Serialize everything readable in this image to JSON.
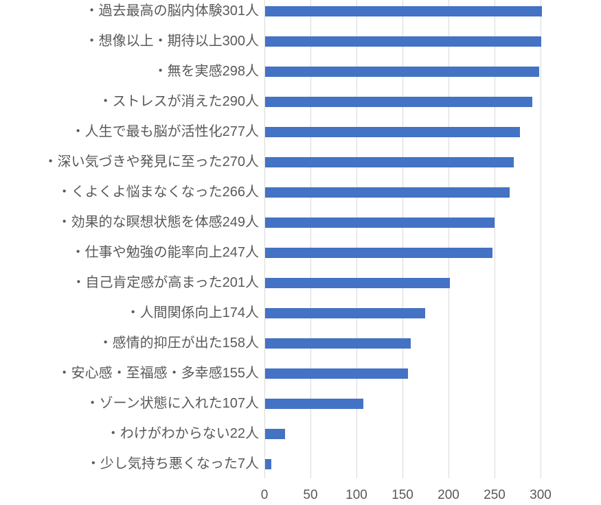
{
  "chart_data": {
    "type": "bar",
    "orientation": "horizontal",
    "title": "",
    "xlabel": "",
    "ylabel": "",
    "categories": [
      "・過去最高の脳内体験301人",
      "・想像以上・期待以上300人",
      "・無を実感298人",
      "・ストレスが消えた290人",
      "・人生で最も脳が活性化277人",
      "・深い気づきや発見に至った270人",
      "・くよくよ悩まなくなった266人",
      "・効果的な瞑想状態を体感249人",
      "・仕事や勉強の能率向上247人",
      "・自己肯定感が高まった201人",
      "・人間関係向上174人",
      "・感情的抑圧が出た158人",
      "・安心感・至福感・多幸感155人",
      "・ゾーン状態に入れた107人",
      "・わけがわからない22人",
      "・少し気持ち悪くなった7人"
    ],
    "values": [
      301,
      300,
      298,
      290,
      277,
      270,
      266,
      249,
      247,
      201,
      174,
      158,
      155,
      107,
      22,
      7
    ],
    "x_ticks": [
      "0",
      "50",
      "100",
      "150",
      "200",
      "250",
      "300"
    ],
    "x_tick_values": [
      0,
      50,
      100,
      150,
      200,
      250,
      300
    ],
    "xlim": [
      0,
      300
    ],
    "grid": true,
    "legend": false,
    "colors": {
      "bar": "#4472C4",
      "gridline": "#D9D9D9",
      "text": "#595959"
    }
  }
}
